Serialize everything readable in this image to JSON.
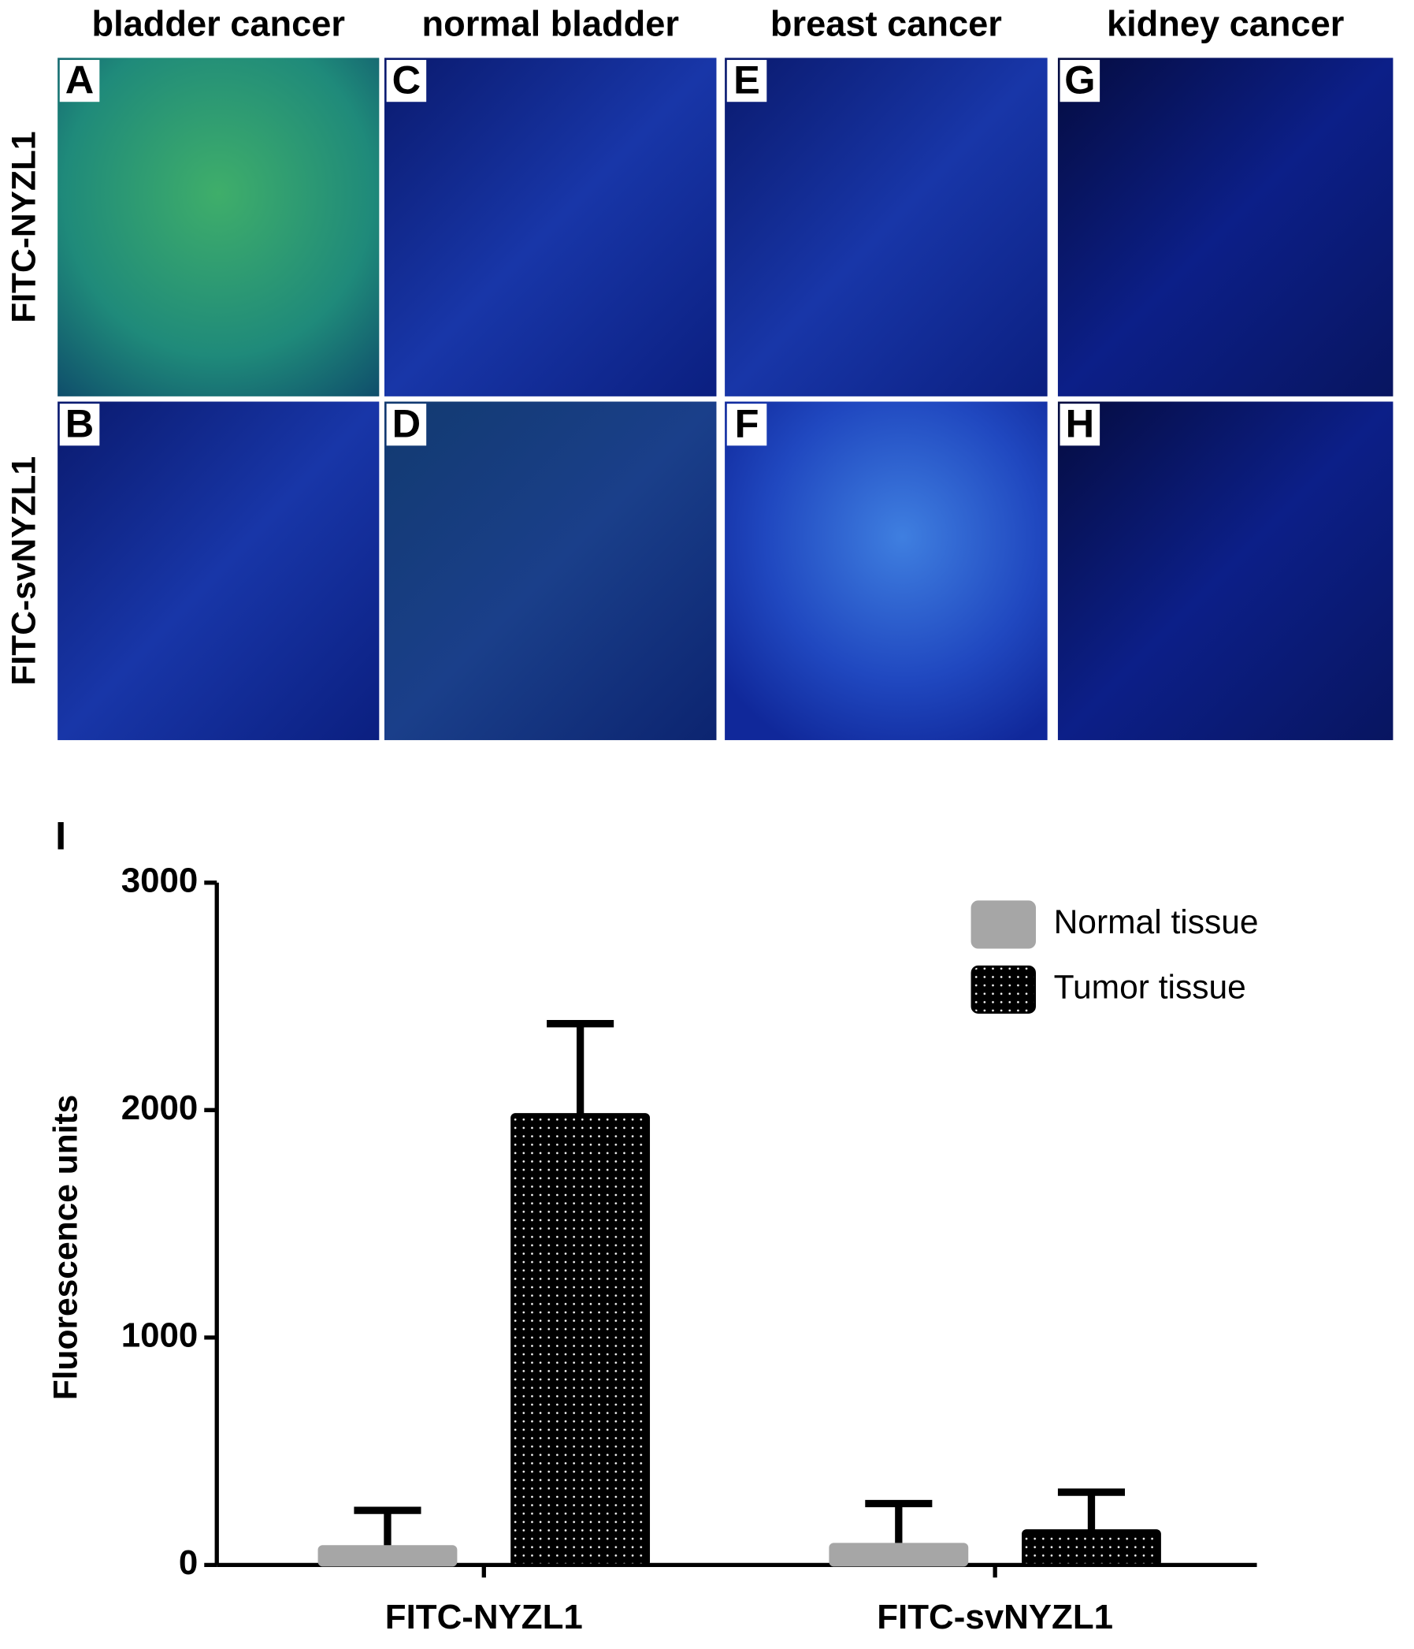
{
  "figure": {
    "columns": [
      "bladder cancer",
      "normal bladder",
      "breast cancer",
      "kidney cancer"
    ],
    "rows": [
      "FITC-NYZL1",
      "FITC-svNYZL1"
    ],
    "panels": [
      [
        "A",
        "B"
      ],
      [
        "C",
        "D"
      ],
      [
        "E",
        "F"
      ],
      [
        "G",
        "H"
      ]
    ]
  },
  "chart_data": {
    "type": "bar",
    "panel_label": "I",
    "y_label": "Fluorescence units",
    "categories": [
      "FITC-NYZL1",
      "FITC-svNYZL1"
    ],
    "series": [
      {
        "name": "Normal tissue",
        "color": "#a6a6a6",
        "values": [
          80,
          90
        ],
        "errors": [
          160,
          180
        ]
      },
      {
        "name": "Tumor tissue",
        "color": "#000000",
        "hatch": "dots",
        "values": [
          1980,
          150
        ],
        "errors": [
          400,
          170
        ]
      }
    ],
    "ylim": [
      0,
      3000
    ],
    "yticks": [
      0,
      1000,
      2000,
      3000
    ],
    "legend": "upper right"
  }
}
